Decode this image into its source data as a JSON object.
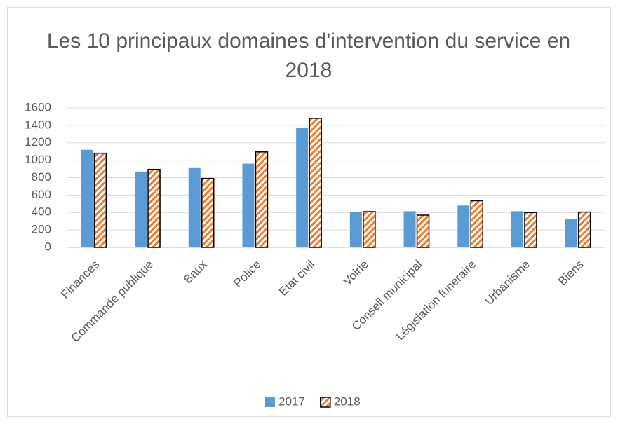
{
  "chart_data": {
    "type": "bar",
    "title": "Les 10 principaux domaines d'intervention du service en 2018",
    "categories": [
      "Finances",
      "Commande publique",
      "Baux",
      "Police",
      "Etat civil",
      "Voirie",
      "Conseil municipal",
      "Législation funéraire",
      "Urbanisme",
      "Biens"
    ],
    "series": [
      {
        "name": "2017",
        "color": "#5b9bd5",
        "values": [
          1120,
          870,
          910,
          960,
          1370,
          405,
          415,
          480,
          415,
          325
        ]
      },
      {
        "name": "2018",
        "color": "#ed7d31",
        "hatch": true,
        "values": [
          1080,
          895,
          790,
          1095,
          1480,
          410,
          370,
          535,
          400,
          405
        ]
      }
    ],
    "ylim": [
      0,
      1600
    ],
    "yticks": [
      0,
      200,
      400,
      600,
      800,
      1000,
      1200,
      1400,
      1600
    ],
    "grid": true,
    "legend": "bottom"
  }
}
